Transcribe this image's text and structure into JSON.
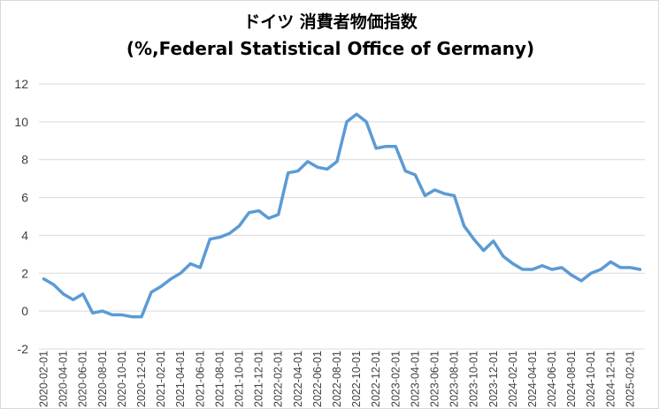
{
  "chart_data": {
    "type": "line",
    "title": "ドイツ 消費者物価指数",
    "subtitle": "(%,Federal Statistical Office of Germany)",
    "xlabel": "",
    "ylabel": "",
    "ylim": [
      -2,
      12
    ],
    "y_ticks": [
      -2,
      0,
      2,
      4,
      6,
      8,
      10,
      12
    ],
    "grid": true,
    "legend": "none",
    "line_color": "#5b9bd5",
    "x_tick_labels": [
      "2020-02-01",
      "2020-04-01",
      "2020-06-01",
      "2020-08-01",
      "2020-10-01",
      "2020-12-01",
      "2021-02-01",
      "2021-04-01",
      "2021-06-01",
      "2021-08-01",
      "2021-10-01",
      "2021-12-01",
      "2022-02-01",
      "2022-04-01",
      "2022-06-01",
      "2022-08-01",
      "2022-10-01",
      "2022-12-01",
      "2023-02-01",
      "2023-04-01",
      "2023-06-01",
      "2023-08-01",
      "2023-10-01",
      "2023-12-01",
      "2024-02-01",
      "2024-04-01",
      "2024-06-01",
      "2024-08-01",
      "2024-10-01",
      "2024-12-01",
      "2025-02-01"
    ],
    "x": [
      "2020-02-01",
      "2020-03-01",
      "2020-04-01",
      "2020-05-01",
      "2020-06-01",
      "2020-07-01",
      "2020-08-01",
      "2020-09-01",
      "2020-10-01",
      "2020-11-01",
      "2020-12-01",
      "2021-01-01",
      "2021-02-01",
      "2021-03-01",
      "2021-04-01",
      "2021-05-01",
      "2021-06-01",
      "2021-07-01",
      "2021-08-01",
      "2021-09-01",
      "2021-10-01",
      "2021-11-01",
      "2021-12-01",
      "2022-01-01",
      "2022-02-01",
      "2022-03-01",
      "2022-04-01",
      "2022-05-01",
      "2022-06-01",
      "2022-07-01",
      "2022-08-01",
      "2022-09-01",
      "2022-10-01",
      "2022-11-01",
      "2022-12-01",
      "2023-01-01",
      "2023-02-01",
      "2023-03-01",
      "2023-04-01",
      "2023-05-01",
      "2023-06-01",
      "2023-07-01",
      "2023-08-01",
      "2023-09-01",
      "2023-10-01",
      "2023-11-01",
      "2023-12-01",
      "2024-01-01",
      "2024-02-01",
      "2024-03-01",
      "2024-04-01",
      "2024-05-01",
      "2024-06-01",
      "2024-07-01",
      "2024-08-01",
      "2024-09-01",
      "2024-10-01",
      "2024-11-01",
      "2024-12-01",
      "2025-01-01",
      "2025-02-01",
      "2025-03-01"
    ],
    "values": [
      1.7,
      1.4,
      0.9,
      0.6,
      0.9,
      -0.1,
      0.0,
      -0.2,
      -0.2,
      -0.3,
      -0.3,
      1.0,
      1.3,
      1.7,
      2.0,
      2.5,
      2.3,
      3.8,
      3.9,
      4.1,
      4.5,
      5.2,
      5.3,
      4.9,
      5.1,
      7.3,
      7.4,
      7.9,
      7.6,
      7.5,
      7.9,
      10.0,
      10.4,
      10.0,
      8.6,
      8.7,
      8.7,
      7.4,
      7.2,
      6.1,
      6.4,
      6.2,
      6.1,
      4.5,
      3.8,
      3.2,
      3.7,
      2.9,
      2.5,
      2.2,
      2.2,
      2.4,
      2.2,
      2.3,
      1.9,
      1.6,
      2.0,
      2.2,
      2.6,
      2.3,
      2.3,
      2.2
    ]
  }
}
